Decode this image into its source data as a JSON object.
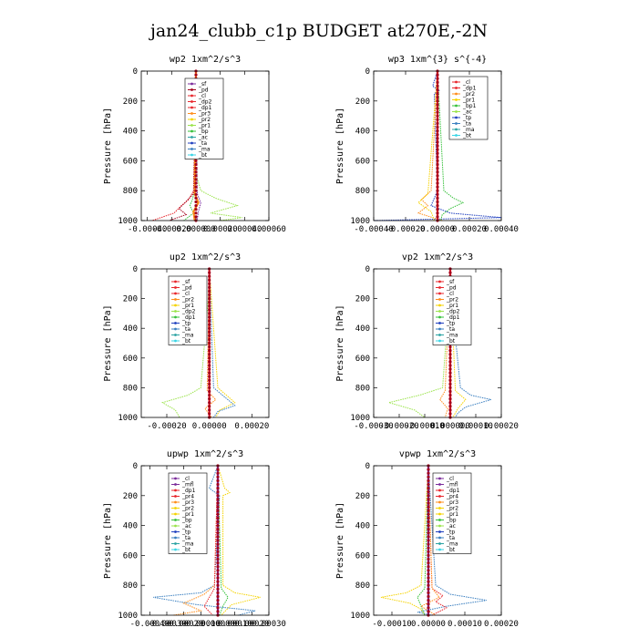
{
  "title": "jan24_clubb_c1p  BUDGET at270E,-2N",
  "colors": {
    "red": "#e8252b",
    "darkred": "#a3001c",
    "purple": "#7b2b9b",
    "orange": "#ff8c1a",
    "yellow": "#f5d300",
    "green": "#36c03a",
    "lightgreen": "#9ae34a",
    "blue": "#1f3fbf",
    "teal": "#2aa3a3",
    "steelblue": "#3a7fc0",
    "cyan": "#39d5e6"
  },
  "chart_data": [
    {
      "type": "line",
      "title": "wp2   1xm^2/s^3",
      "ylabel": "Pressure [hPa]",
      "ylim": [
        1000,
        0
      ],
      "yticks": [
        0,
        200,
        400,
        600,
        800,
        1000
      ],
      "xlim": [
        -0.00045,
        0.0006
      ],
      "xticks": [
        -0.0004,
        -0.0002,
        0.0,
        0.0002,
        0.0004,
        0.0006
      ],
      "xtick_labels": [
        "-0.00040",
        "-0.00020",
        "0.000000",
        "0.00020",
        "0.00040",
        "0.00060"
      ],
      "legend": [
        "_sf",
        "_pd",
        "_cl",
        "_dp2",
        "_dp1",
        "_pr3",
        "_pr2",
        "_pr1",
        "_bp",
        "_ac",
        "_ta",
        "_ma",
        "_bt"
      ],
      "legend_colors": [
        "purple",
        "darkred",
        "red",
        "red",
        "red",
        "orange",
        "yellow",
        "lightgreen",
        "green",
        "teal",
        "blue",
        "steelblue",
        "cyan"
      ],
      "series": [
        {
          "color": "lightgreen",
          "p": [
            0,
            700,
            800,
            850,
            900,
            950,
            980,
            1000
          ],
          "v": [
            2e-06,
            4e-06,
            4e-05,
            0.00016,
            0.00034,
            0.00012,
            0.00038,
            0.0002
          ]
        },
        {
          "color": "green",
          "p": [
            0,
            800,
            860,
            900,
            950,
            1000
          ],
          "v": [
            0,
            -1e-05,
            -3e-05,
            -5e-05,
            -2e-05,
            -0.0001
          ]
        },
        {
          "color": "red",
          "p": [
            0,
            800,
            860,
            900,
            950,
            1000
          ],
          "v": [
            0,
            -2e-05,
            -6e-05,
            -0.00012,
            -0.00018,
            -0.00036
          ]
        },
        {
          "color": "darkred",
          "p": [
            0,
            820,
            880,
            920,
            960,
            1000
          ],
          "v": [
            0,
            -2e-05,
            -9e-05,
            -0.00014,
            -8e-05,
            -0.00022
          ]
        },
        {
          "color": "purple",
          "p": [
            0,
            820,
            880,
            940,
            1000
          ],
          "v": [
            0,
            1e-05,
            4e-05,
            2e-05,
            1e-05
          ]
        },
        {
          "color": "orange",
          "p": [
            0,
            820,
            880,
            940,
            1000
          ],
          "v": [
            0,
            -1e-05,
            2e-05,
            -2e-05,
            -1e-05
          ]
        }
      ]
    },
    {
      "type": "line",
      "title": "wp3   1xm^{3} s^{-4}",
      "ylabel": "Pressure [hPa]",
      "ylim": [
        1000,
        0
      ],
      "yticks": [
        0,
        200,
        400,
        600,
        800,
        1000
      ],
      "xlim": [
        -0.0004,
        0.0004
      ],
      "xticks": [
        -0.0004,
        -0.0002,
        0.0,
        0.0002,
        0.0004
      ],
      "xtick_labels": [
        "-0.00040",
        "-0.00020",
        "0.00000",
        "0.00020",
        "0.00040"
      ],
      "legend": [
        "_cl",
        "_dp1",
        "_pr2",
        "_pr1",
        "_bp1",
        "_ac",
        "_tp",
        "_ta",
        "_ma",
        "_bt"
      ],
      "legend_colors": [
        "red",
        "red",
        "orange",
        "yellow",
        "green",
        "lightgreen",
        "blue",
        "steelblue",
        "teal",
        "cyan"
      ],
      "series": [
        {
          "color": "blue",
          "p": [
            0,
            100,
            130,
            150,
            800,
            900,
            950,
            980,
            1000
          ],
          "v": [
            0,
            -3e-05,
            1e-05,
            -2e-05,
            0,
            -4e-05,
            8e-05,
            0.0004,
            -0.0004
          ]
        },
        {
          "color": "green",
          "p": [
            0,
            800,
            850,
            880,
            920,
            960,
            1000
          ],
          "v": [
            0,
            4e-05,
            0.0001,
            0.00016,
            8e-05,
            3e-05,
            2e-05
          ]
        },
        {
          "color": "orange",
          "p": [
            0,
            800,
            860,
            900,
            950,
            1000
          ],
          "v": [
            0,
            -4e-05,
            -0.0001,
            -6e-05,
            -0.00012,
            3e-05
          ]
        },
        {
          "color": "yellow",
          "p": [
            0,
            820,
            880,
            940,
            1000
          ],
          "v": [
            0,
            -6e-05,
            -0.00012,
            -4e-05,
            -2e-05
          ]
        },
        {
          "color": "red",
          "p": [
            0,
            1000
          ],
          "v": [
            0,
            0
          ]
        }
      ]
    },
    {
      "type": "line",
      "title": "up2   1xm^2/s^3",
      "ylabel": "Pressure [hPa]",
      "ylim": [
        1000,
        0
      ],
      "yticks": [
        0,
        200,
        400,
        600,
        800,
        1000
      ],
      "xlim": [
        -0.00032,
        0.00028
      ],
      "xticks": [
        -0.0002,
        0.0,
        0.0002
      ],
      "xtick_labels": [
        "-0.00020",
        "0.00000",
        "0.00020"
      ],
      "legend": [
        "_sf",
        "_pd",
        "_cl",
        "_pr2",
        "_pr1",
        "_dp2",
        "_dp1",
        "_tp",
        "_ta",
        "_ma",
        "_bt"
      ],
      "legend_colors": [
        "red",
        "red",
        "red",
        "orange",
        "yellow",
        "lightgreen",
        "green",
        "blue",
        "steelblue",
        "teal",
        "cyan"
      ],
      "series": [
        {
          "color": "lightgreen",
          "p": [
            0,
            200,
            800,
            850,
            900,
            950,
            1000
          ],
          "v": [
            0,
            -5e-06,
            -4e-05,
            -0.0001,
            -0.00022,
            -0.00016,
            -0.00014
          ]
        },
        {
          "color": "yellow",
          "p": [
            0,
            800,
            850,
            900,
            950,
            1000
          ],
          "v": [
            0,
            4e-05,
            8e-05,
            0.00012,
            5e-05,
            3e-05
          ]
        },
        {
          "color": "steelblue",
          "p": [
            0,
            200,
            800,
            860,
            920,
            960,
            1000
          ],
          "v": [
            0,
            5e-06,
            2e-05,
            7e-05,
            0.00012,
            4e-05,
            2e-05
          ]
        },
        {
          "color": "orange",
          "p": [
            0,
            820,
            880,
            940,
            1000
          ],
          "v": [
            0,
            -1e-05,
            3e-05,
            -2e-05,
            1e-05
          ]
        },
        {
          "color": "red",
          "p": [
            0,
            1000
          ],
          "v": [
            0,
            0
          ]
        }
      ]
    },
    {
      "type": "line",
      "title": "vp2   1xm^2/s^3",
      "ylabel": "Pressure [hPa]",
      "ylim": [
        1000,
        0
      ],
      "yticks": [
        0,
        200,
        400,
        600,
        800,
        1000
      ],
      "xlim": [
        -0.0003,
        0.0002
      ],
      "xticks": [
        -0.0003,
        -0.0002,
        -0.0001,
        0.0,
        0.0001,
        0.0002
      ],
      "xtick_labels": [
        "-0.00030",
        "-0.00020",
        "-0.00010",
        "0.000000",
        "0.00010",
        "0.00020"
      ],
      "legend": [
        "_sf",
        "_pd",
        "_cl",
        "_pr2",
        "_pr1",
        "_dp2",
        "_dp1",
        "_tp",
        "_ta",
        "_ma",
        "_bt"
      ],
      "legend_colors": [
        "red",
        "red",
        "red",
        "orange",
        "yellow",
        "lightgreen",
        "green",
        "blue",
        "steelblue",
        "teal",
        "cyan"
      ],
      "series": [
        {
          "color": "lightgreen",
          "p": [
            0,
            200,
            800,
            850,
            900,
            950,
            1000
          ],
          "v": [
            0,
            -5e-06,
            -3e-05,
            -0.00012,
            -0.00024,
            -0.00014,
            -0.0001
          ]
        },
        {
          "color": "steelblue",
          "p": [
            0,
            200,
            800,
            850,
            880,
            930,
            970,
            1000
          ],
          "v": [
            0,
            5e-06,
            4e-05,
            8e-05,
            0.00016,
            6e-05,
            3e-05,
            2e-05
          ]
        },
        {
          "color": "yellow",
          "p": [
            0,
            820,
            880,
            940,
            1000
          ],
          "v": [
            0,
            2e-05,
            6e-05,
            3e-05,
            1e-05
          ]
        },
        {
          "color": "orange",
          "p": [
            0,
            820,
            880,
            940,
            1000
          ],
          "v": [
            0,
            -2e-05,
            -4e-05,
            -1e-05,
            -2e-05
          ]
        },
        {
          "color": "red",
          "p": [
            0,
            1000
          ],
          "v": [
            0,
            0
          ]
        }
      ]
    },
    {
      "type": "line",
      "title": "upwp   1xm^2/s^3",
      "ylabel": "Pressure [hPa]",
      "ylim": [
        1000,
        0
      ],
      "yticks": [
        0,
        200,
        400,
        600,
        800,
        1000
      ],
      "xlim": [
        -0.00045,
        0.0003
      ],
      "xticks": [
        -0.0004,
        -0.0003,
        -0.0002,
        -0.0001,
        0.0,
        0.0001,
        0.0002,
        0.0003
      ],
      "xtick_labels": [
        "-0.00040",
        "-0.00030",
        "-0.00020",
        "-0.00010",
        "0.00000",
        "0.00010",
        "0.00020",
        "0.00030"
      ],
      "legend": [
        "_cl",
        "_mfl",
        "_dp1",
        "_pr4",
        "_pr3",
        "_pr2",
        "_pr1",
        "_bp",
        "_ac",
        "_tp",
        "_ta",
        "_ma",
        "_bt"
      ],
      "legend_colors": [
        "purple",
        "purple",
        "red",
        "red",
        "orange",
        "yellow",
        "yellow",
        "green",
        "lightgreen",
        "blue",
        "steelblue",
        "teal",
        "cyan"
      ],
      "series": [
        {
          "color": "steelblue",
          "p": [
            0,
            150,
            200,
            800,
            850,
            880,
            930,
            970,
            1000
          ],
          "v": [
            0,
            -5e-05,
            1e-05,
            -2e-05,
            -0.0001,
            -0.00038,
            -0.00012,
            0.00022,
            0.00012
          ]
        },
        {
          "color": "yellow",
          "p": [
            0,
            150,
            180,
            200,
            800,
            850,
            880,
            930,
            1000
          ],
          "v": [
            0,
            4e-05,
            7e-05,
            3e-05,
            3e-05,
            0.0001,
            0.00025,
            8e-05,
            2e-05
          ]
        },
        {
          "color": "orange",
          "p": [
            0,
            800,
            860,
            920,
            970,
            1000
          ],
          "v": [
            0,
            -2e-05,
            -8e-05,
            -0.0002,
            -0.0001,
            -0.00026
          ]
        },
        {
          "color": "green",
          "p": [
            0,
            820,
            880,
            940,
            1000
          ],
          "v": [
            0,
            2e-05,
            6e-05,
            3e-05,
            1e-05
          ]
        },
        {
          "color": "red",
          "p": [
            0,
            820,
            880,
            940,
            1000
          ],
          "v": [
            0,
            -2e-05,
            -5e-05,
            -8e-05,
            -3e-05
          ]
        },
        {
          "color": "purple",
          "p": [
            0,
            1000
          ],
          "v": [
            0,
            0
          ]
        }
      ]
    },
    {
      "type": "line",
      "title": "vpwp   1xm^2/s^3",
      "ylabel": "Pressure [hPa]",
      "ylim": [
        1000,
        0
      ],
      "yticks": [
        0,
        200,
        400,
        600,
        800,
        1000
      ],
      "xlim": [
        -0.00015,
        0.0002
      ],
      "xticks": [
        -0.0001,
        0.0,
        0.0001,
        0.0002
      ],
      "xtick_labels": [
        "-0.00010",
        "0.00000",
        "0.00010",
        "0.00020"
      ],
      "legend": [
        "_cl",
        "_mfl",
        "_dp1",
        "_pr4",
        "_pr3",
        "_pr2",
        "_pr1",
        "_bp",
        "_ac",
        "_tp",
        "_ta",
        "_ma",
        "_bt"
      ],
      "legend_colors": [
        "purple",
        "purple",
        "red",
        "red",
        "orange",
        "yellow",
        "yellow",
        "green",
        "lightgreen",
        "blue",
        "steelblue",
        "teal",
        "cyan"
      ],
      "series": [
        {
          "color": "yellow",
          "p": [
            0,
            800,
            850,
            880,
            920,
            960,
            1000
          ],
          "v": [
            0,
            -2e-05,
            -6e-05,
            -0.00013,
            -5e-05,
            -2e-05,
            -1e-05
          ]
        },
        {
          "color": "steelblue",
          "p": [
            0,
            800,
            860,
            900,
            940,
            980,
            1000
          ],
          "v": [
            0,
            2e-05,
            6e-05,
            0.00016,
            5e-05,
            -3e-05,
            1e-05
          ]
        },
        {
          "color": "red",
          "p": [
            0,
            820,
            870,
            910,
            950,
            1000
          ],
          "v": [
            0,
            1e-05,
            4e-05,
            2e-05,
            5e-05,
            1e-05
          ]
        },
        {
          "color": "green",
          "p": [
            0,
            820,
            880,
            940,
            1000
          ],
          "v": [
            0,
            -1e-05,
            -3e-05,
            -2e-05,
            -1e-05
          ]
        },
        {
          "color": "orange",
          "p": [
            0,
            820,
            880,
            940,
            1000
          ],
          "v": [
            0,
            1e-05,
            3e-05,
            -2e-05,
            2e-05
          ]
        },
        {
          "color": "purple",
          "p": [
            0,
            1000
          ],
          "v": [
            0,
            0
          ]
        }
      ]
    }
  ]
}
